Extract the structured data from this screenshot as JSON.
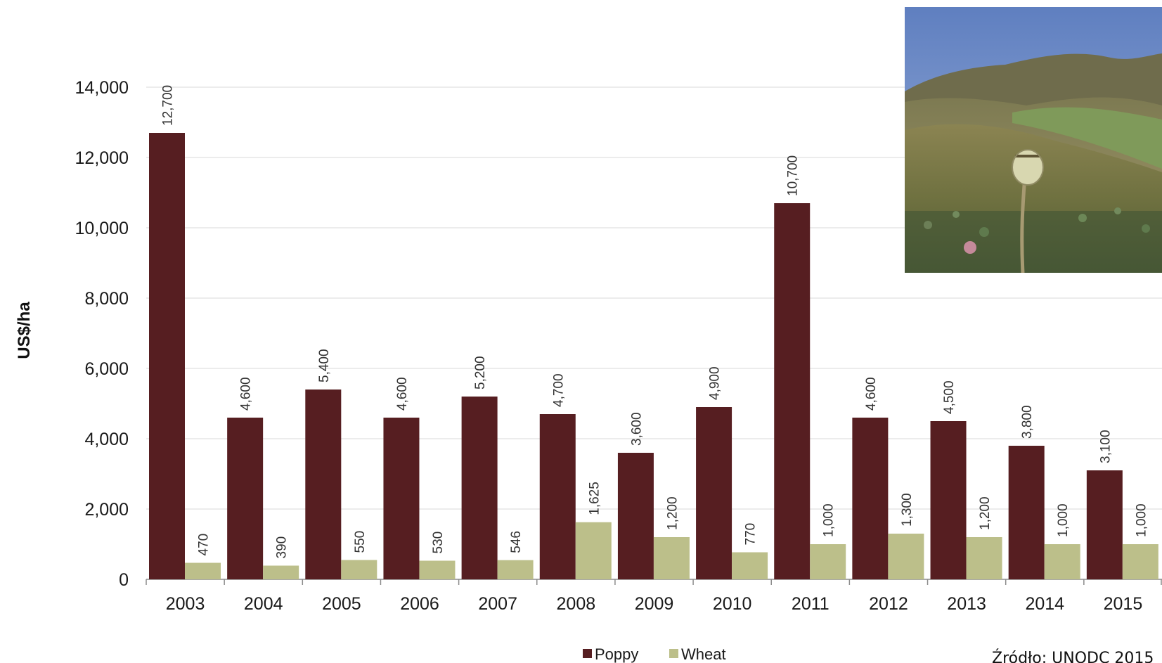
{
  "chart_data": {
    "type": "bar",
    "ylabel": "US$/ha",
    "xlabel": "",
    "ylim": [
      0,
      14000
    ],
    "yticks": [
      0,
      2000,
      4000,
      6000,
      8000,
      10000,
      12000,
      14000
    ],
    "ytick_labels": [
      "0",
      "2,000",
      "4,000",
      "6,000",
      "8,000",
      "10,000",
      "12,000",
      "14,000"
    ],
    "grid": true,
    "legend_position": "bottom-center",
    "categories": [
      "2003",
      "2004",
      "2005",
      "2006",
      "2007",
      "2008",
      "2009",
      "2010",
      "2011",
      "2012",
      "2013",
      "2014",
      "2015"
    ],
    "series": [
      {
        "name": "Poppy",
        "color": "#561e21",
        "values": [
          12700,
          4600,
          5400,
          4600,
          5200,
          4700,
          3600,
          4900,
          10700,
          4600,
          4500,
          3800,
          3100
        ],
        "labels": [
          "12,700",
          "4,600",
          "5,400",
          "4,600",
          "5,200",
          "4,700",
          "3,600",
          "4,900",
          "10,700",
          "4,600",
          "4,500",
          "3,800",
          "3,100"
        ]
      },
      {
        "name": "Wheat",
        "color": "#bcbf8a",
        "values": [
          470,
          390,
          550,
          530,
          546,
          1625,
          1200,
          770,
          1000,
          1300,
          1200,
          1000,
          1000
        ],
        "labels": [
          "470",
          "390",
          "550",
          "530",
          "546",
          "1,625",
          "1,200",
          "770",
          "1,000",
          "1,300",
          "1,200",
          "1,000",
          "1,000"
        ]
      }
    ]
  },
  "source_note": "Źródło: UNODC 2015",
  "photo": {
    "icon": "poppy-field-photo",
    "sky_color": "#6c86bd",
    "field_color": "#7a7a45"
  }
}
